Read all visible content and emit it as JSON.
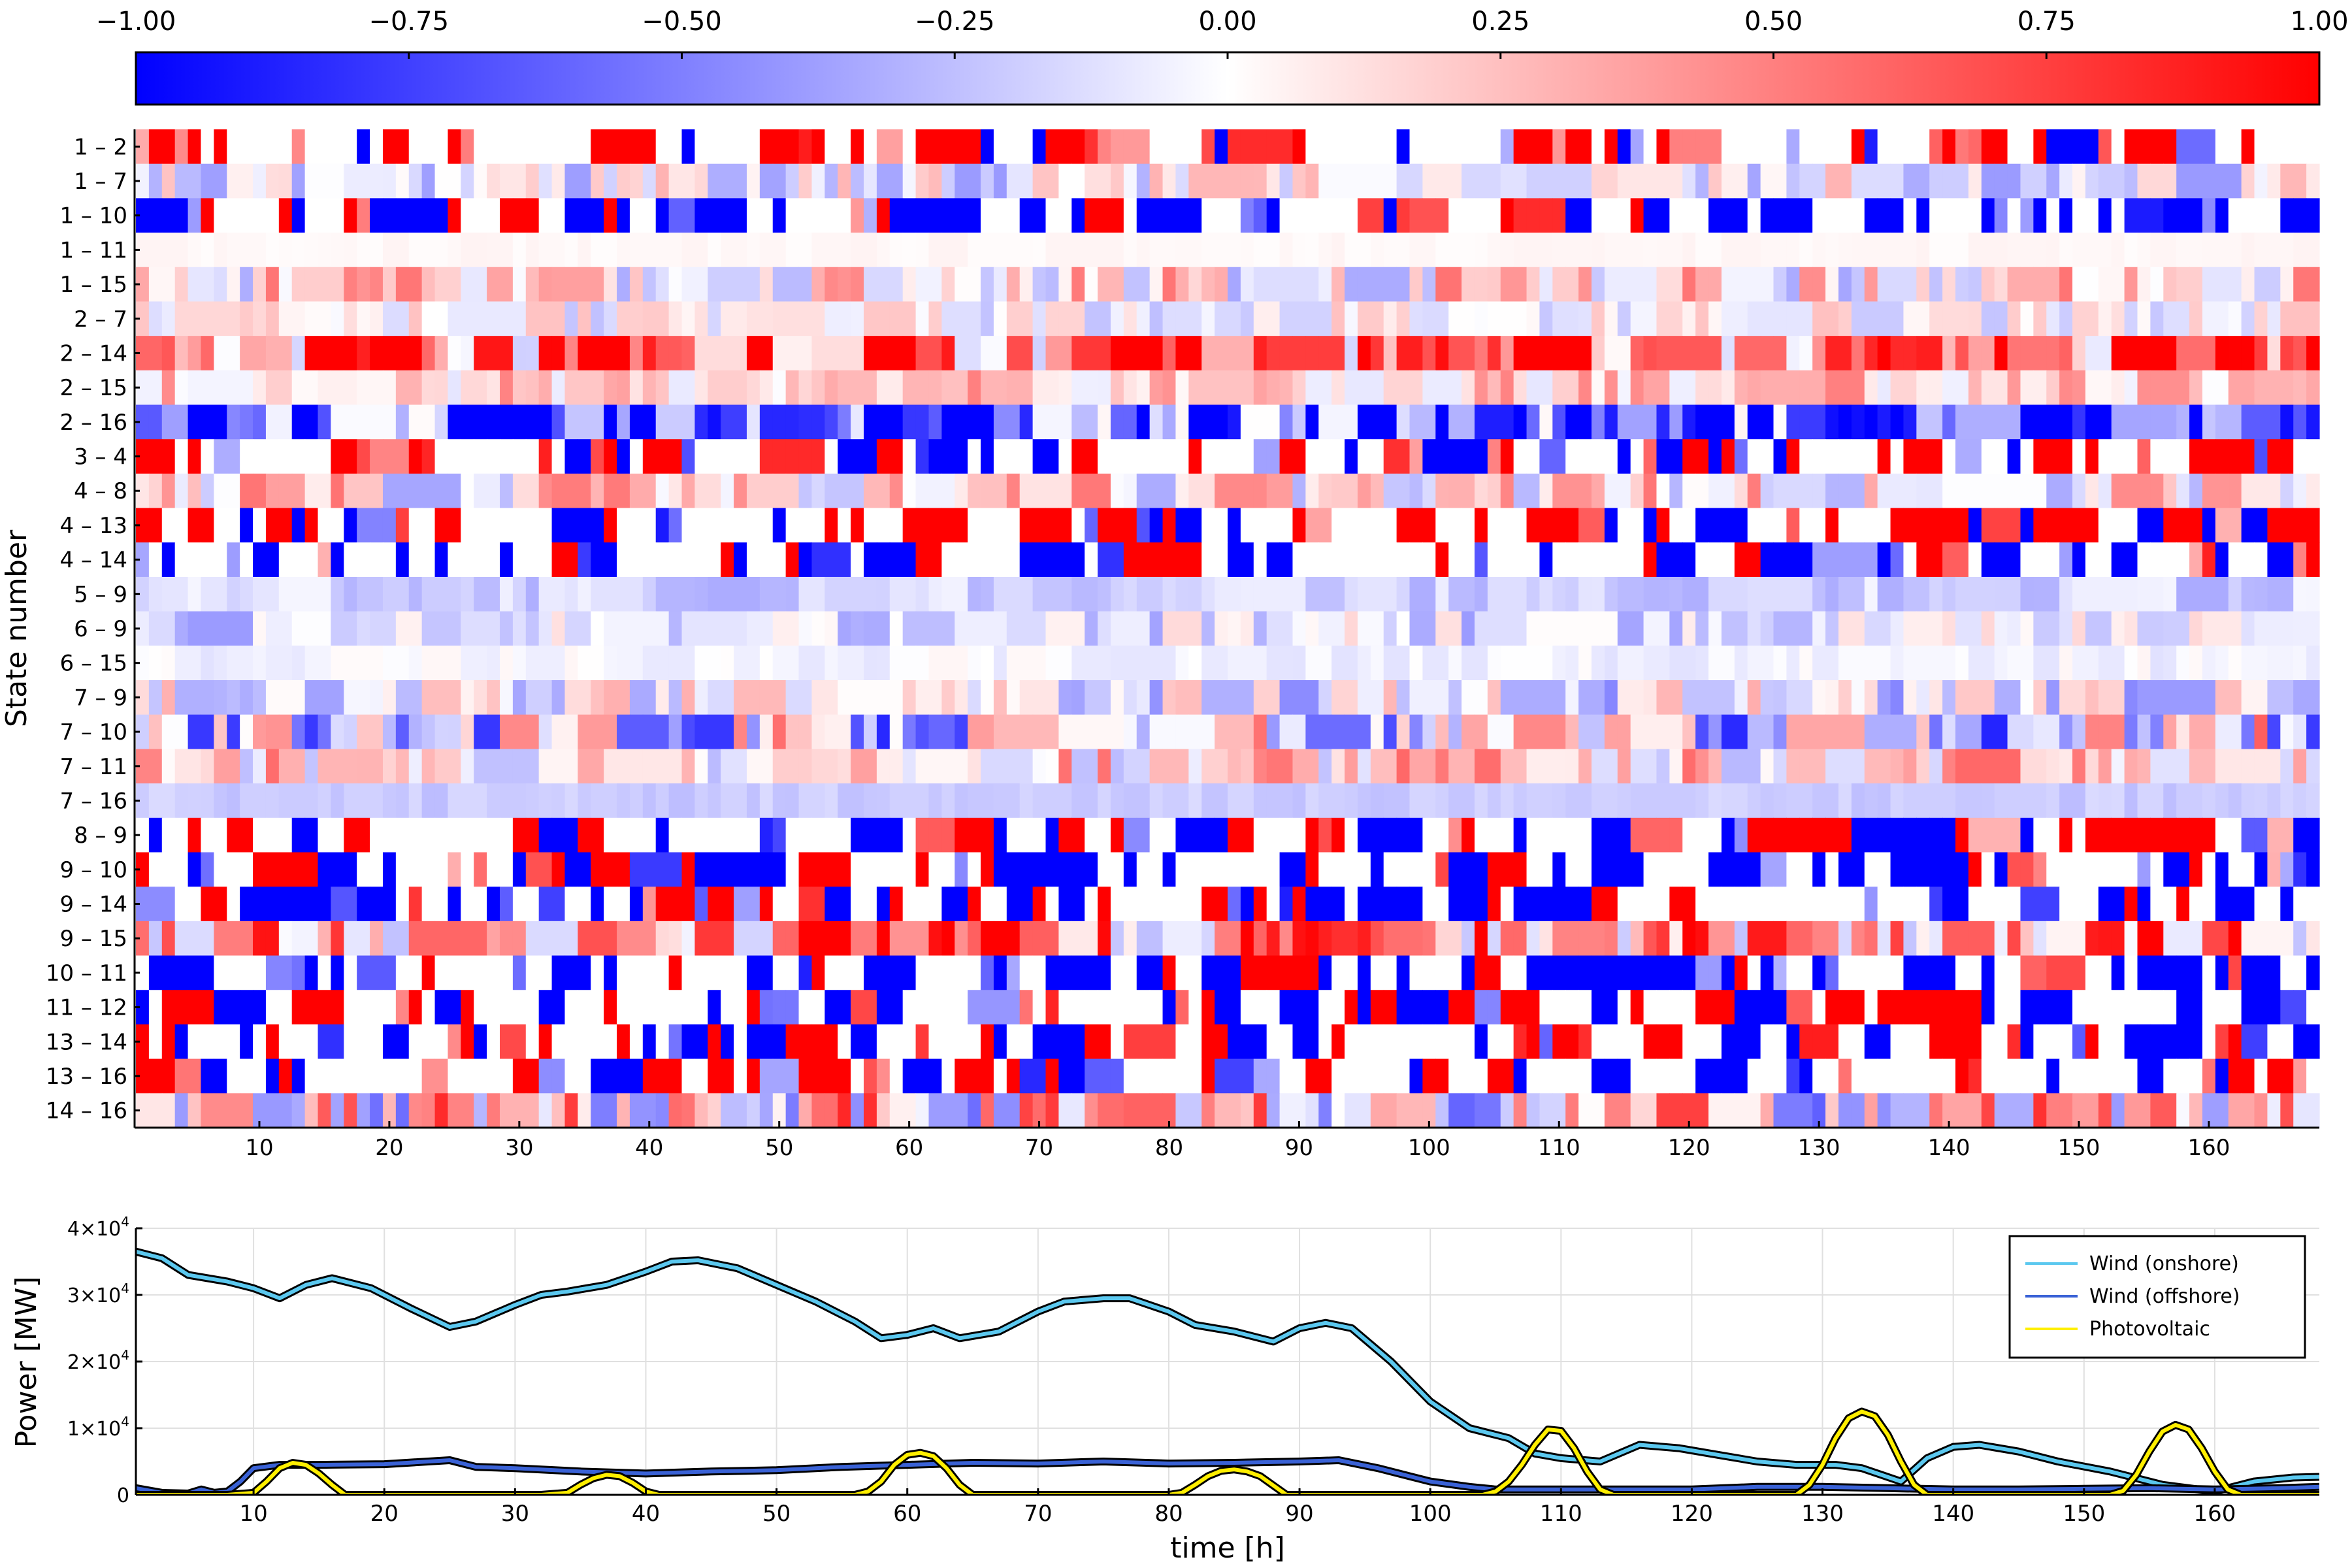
{
  "chart_data": [
    {
      "type": "heatmap",
      "title": "",
      "xlabel": "",
      "ylabel": "State number",
      "x_range": [
        1,
        168
      ],
      "x_ticks": [
        10,
        20,
        30,
        40,
        50,
        60,
        70,
        80,
        90,
        100,
        110,
        120,
        130,
        140,
        150,
        160
      ],
      "row_labels": [
        "1 – 2",
        "1 – 7",
        "1 – 10",
        "1 – 11",
        "1 – 15",
        "2 – 7",
        "2 – 14",
        "2 – 15",
        "2 – 16",
        "3 – 4",
        "4 – 8",
        "4 – 13",
        "4 – 14",
        "5 – 9",
        "6 – 9",
        "6 – 15",
        "7 – 9",
        "7 – 10",
        "7 – 11",
        "7 – 16",
        "8 – 9",
        "9 – 10",
        "9 – 14",
        "9 – 15",
        "10 – 11",
        "11 – 12",
        "13 – 14",
        "13 – 16",
        "14 – 16"
      ],
      "colorbar": {
        "min": -1.0,
        "max": 1.0,
        "ticks": [
          "−1.00",
          "−0.75",
          "−0.50",
          "−0.25",
          "0.00",
          "0.25",
          "0.50",
          "0.75",
          "1.00"
        ],
        "colors": [
          "#0000ff",
          "#ffffff",
          "#ff0000"
        ]
      },
      "row_profiles": [
        {
          "bias": 0.55,
          "spread": 1.0
        },
        {
          "bias": -0.05,
          "spread": 0.35
        },
        {
          "bias": -0.55,
          "spread": 1.0
        },
        {
          "bias": 0.03,
          "spread": 0.02
        },
        {
          "bias": 0.1,
          "spread": 0.45
        },
        {
          "bias": 0.0,
          "spread": 0.25
        },
        {
          "bias": 0.6,
          "spread": 0.8
        },
        {
          "bias": 0.2,
          "spread": 0.3
        },
        {
          "bias": -0.65,
          "spread": 0.7
        },
        {
          "bias": 0.1,
          "spread": 1.0
        },
        {
          "bias": 0.1,
          "spread": 0.45
        },
        {
          "bias": 0.3,
          "spread": 1.0
        },
        {
          "bias": -0.35,
          "spread": 1.0
        },
        {
          "bias": -0.18,
          "spread": 0.15
        },
        {
          "bias": -0.12,
          "spread": 0.28
        },
        {
          "bias": -0.04,
          "spread": 0.08
        },
        {
          "bias": -0.08,
          "spread": 0.4
        },
        {
          "bias": -0.12,
          "spread": 0.75
        },
        {
          "bias": 0.15,
          "spread": 0.45
        },
        {
          "bias": -0.2,
          "spread": 0.06
        },
        {
          "bias": 0.05,
          "spread": 1.0
        },
        {
          "bias": -0.45,
          "spread": 1.0
        },
        {
          "bias": -0.2,
          "spread": 1.0
        },
        {
          "bias": 0.45,
          "spread": 0.7
        },
        {
          "bias": -0.5,
          "spread": 1.0
        },
        {
          "bias": -0.25,
          "spread": 1.0
        },
        {
          "bias": -0.05,
          "spread": 1.0
        },
        {
          "bias": 0.05,
          "spread": 0.9
        },
        {
          "bias": 0.1,
          "spread": 0.75
        }
      ]
    },
    {
      "type": "line",
      "title": "",
      "xlabel": "time [h]",
      "ylabel": "Power [MW]",
      "xlim": [
        1,
        168
      ],
      "ylim": [
        0,
        40000
      ],
      "x_ticks": [
        10,
        20,
        30,
        40,
        50,
        60,
        70,
        80,
        90,
        100,
        110,
        120,
        130,
        140,
        150,
        160
      ],
      "y_ticks": [
        {
          "value": 0,
          "base": "0",
          "exp": ""
        },
        {
          "value": 10000,
          "base": "1×10",
          "exp": "4"
        },
        {
          "value": 20000,
          "base": "2×10",
          "exp": "4"
        },
        {
          "value": 30000,
          "base": "3×10",
          "exp": "4"
        },
        {
          "value": 40000,
          "base": "4×10",
          "exp": "4"
        }
      ],
      "legend_position": "top-right",
      "series": [
        {
          "name": "Wind (onshore)",
          "color": "#5bc8ef",
          "x": [
            1,
            3,
            5,
            8,
            10,
            12,
            14,
            16,
            19,
            22,
            25,
            27,
            30,
            32,
            34,
            37,
            40,
            42,
            44,
            47,
            50,
            53,
            56,
            58,
            60,
            62,
            64,
            67,
            70,
            72,
            75,
            77,
            80,
            82,
            85,
            88,
            90,
            92,
            94,
            97,
            100,
            103,
            106,
            108,
            110,
            113,
            116,
            119,
            122,
            125,
            128,
            131,
            133,
            136,
            138,
            140,
            142,
            145,
            148,
            152,
            156,
            160,
            163,
            166,
            168
          ],
          "y": [
            36500,
            35500,
            33000,
            32000,
            31000,
            29500,
            31500,
            32500,
            31000,
            28000,
            25200,
            26000,
            28500,
            30000,
            30500,
            31500,
            33500,
            35000,
            35200,
            34000,
            31500,
            29000,
            26000,
            23500,
            24000,
            25000,
            23500,
            24500,
            27500,
            29000,
            29500,
            29500,
            27500,
            25500,
            24500,
            23000,
            25000,
            25800,
            25000,
            20000,
            14000,
            10000,
            8500,
            6200,
            5500,
            5000,
            7500,
            7000,
            6000,
            5000,
            4500,
            4500,
            4000,
            2000,
            5500,
            7200,
            7500,
            6500,
            5000,
            3500,
            1500,
            500,
            2000,
            2600,
            2700
          ]
        },
        {
          "name": "Wind (offshore)",
          "color": "#3a62d6",
          "x": [
            1,
            3,
            5,
            6,
            7,
            8,
            9,
            10,
            12,
            15,
            20,
            25,
            27,
            30,
            35,
            40,
            45,
            50,
            55,
            60,
            65,
            70,
            75,
            80,
            85,
            90,
            93,
            96,
            100,
            103,
            105,
            110,
            115,
            120,
            125,
            130,
            135,
            140,
            145,
            150,
            155,
            160,
            165,
            168
          ],
          "y": [
            1000,
            300,
            200,
            800,
            300,
            500,
            2000,
            4000,
            4500,
            4500,
            4600,
            5200,
            4200,
            4000,
            3500,
            3200,
            3500,
            3700,
            4200,
            4500,
            4800,
            4700,
            5000,
            4700,
            4800,
            5000,
            5200,
            4000,
            2000,
            1200,
            800,
            800,
            800,
            800,
            1200,
            1200,
            1000,
            800,
            800,
            900,
            1000,
            800,
            1000,
            1200
          ]
        },
        {
          "name": "Photovoltaic",
          "color": "#ffef00",
          "x": [
            1,
            8,
            10,
            11,
            12,
            13,
            14,
            15,
            16,
            17,
            20,
            32,
            34,
            35,
            36,
            37,
            38,
            39,
            40,
            41,
            42,
            56,
            57,
            58,
            59,
            60,
            61,
            62,
            63,
            64,
            65,
            80,
            81,
            82,
            83,
            84,
            85,
            86,
            87,
            88,
            89,
            104,
            105,
            106,
            107,
            108,
            109,
            110,
            111,
            112,
            113,
            114,
            128,
            129,
            130,
            131,
            132,
            133,
            134,
            135,
            136,
            137,
            138,
            152,
            153,
            154,
            155,
            156,
            157,
            158,
            159,
            160,
            161,
            162,
            168
          ],
          "y": [
            0,
            0,
            300,
            2000,
            4000,
            4800,
            4500,
            3200,
            1500,
            0,
            0,
            0,
            300,
            1500,
            2500,
            3000,
            2800,
            1800,
            500,
            0,
            0,
            0,
            500,
            2000,
            4500,
            6000,
            6300,
            5800,
            4000,
            1500,
            0,
            0,
            300,
            1500,
            2800,
            3600,
            3800,
            3500,
            2800,
            1400,
            0,
            0,
            500,
            2000,
            4500,
            7500,
            9800,
            9600,
            7000,
            3500,
            800,
            0,
            0,
            1500,
            4500,
            8500,
            11500,
            12500,
            11800,
            9000,
            5000,
            1500,
            0,
            0,
            600,
            3000,
            6500,
            9500,
            10500,
            9800,
            7000,
            3500,
            800,
            0,
            0
          ]
        }
      ]
    }
  ]
}
